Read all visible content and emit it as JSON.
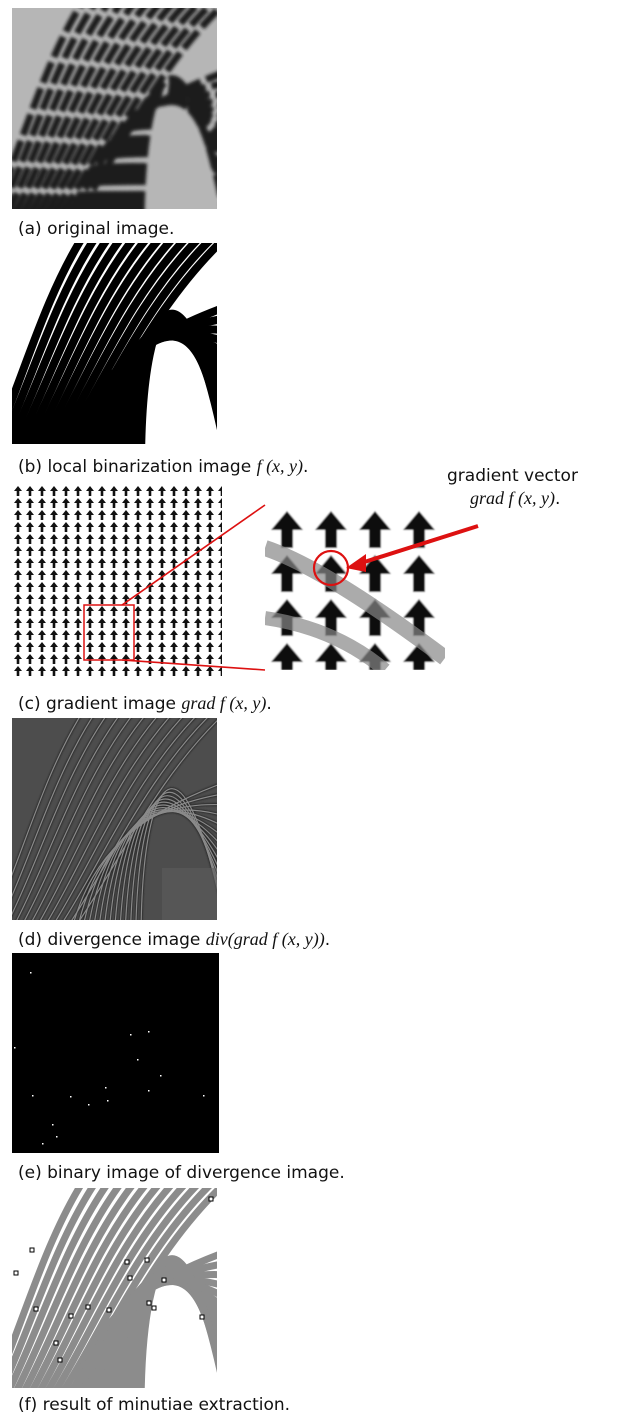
{
  "panels": [
    {
      "id": "a",
      "caption": "(a) original image."
    },
    {
      "id": "b",
      "caption_prefix": "(b) local binarization image ",
      "caption_math": "f (x, y)",
      "caption_suffix": "."
    },
    {
      "id": "c",
      "caption_prefix": "(c) gradient image ",
      "caption_math": "grad f (x, y)",
      "caption_suffix": "."
    },
    {
      "id": "d",
      "caption_prefix": "(d) divergence image ",
      "caption_math": "div(grad f (x, y))",
      "caption_suffix": "."
    },
    {
      "id": "e",
      "caption": "(e) binary image of divergence image."
    },
    {
      "id": "f",
      "caption": "(f) result of minutiae extraction."
    }
  ],
  "annotation": {
    "title": "gradient vector",
    "math": "grad f (x, y)",
    "suffix": ".",
    "highlight_color": "#dd1111"
  }
}
